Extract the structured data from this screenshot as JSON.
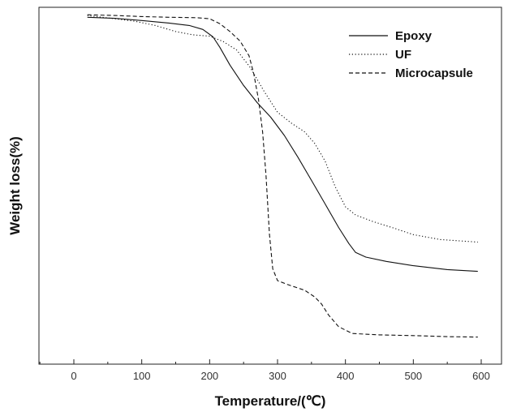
{
  "chart_data": {
    "type": "line",
    "xlabel": "Temperature/(℃)",
    "ylabel": "Weight loss(%)",
    "xlim": [
      -50,
      625
    ],
    "ylim": [
      0,
      100
    ],
    "x_ticks": [
      "0",
      "100",
      "200",
      "300",
      "400",
      "500",
      "600"
    ],
    "x_tick_values": [
      0,
      100,
      200,
      300,
      400,
      500,
      600
    ],
    "y_tick_labels_shown": false,
    "grid": false,
    "legend_position": "top-right",
    "series": [
      {
        "name": "Epoxy",
        "style": "solid",
        "points": [
          [
            20,
            97.2
          ],
          [
            60,
            96.9
          ],
          [
            100,
            96.3
          ],
          [
            140,
            95.6
          ],
          [
            170,
            94.9
          ],
          [
            190,
            93.8
          ],
          [
            205,
            91.7
          ],
          [
            215,
            88.8
          ],
          [
            230,
            83.8
          ],
          [
            250,
            78.1
          ],
          [
            270,
            73.3
          ],
          [
            290,
            69.2
          ],
          [
            310,
            64.1
          ],
          [
            330,
            58.0
          ],
          [
            350,
            51.5
          ],
          [
            370,
            44.9
          ],
          [
            390,
            38.3
          ],
          [
            405,
            33.8
          ],
          [
            415,
            31.3
          ],
          [
            430,
            30.0
          ],
          [
            460,
            28.8
          ],
          [
            500,
            27.6
          ],
          [
            550,
            26.5
          ],
          [
            595,
            26.0
          ]
        ]
      },
      {
        "name": "UF",
        "style": "dotted",
        "points": [
          [
            20,
            97.7
          ],
          [
            60,
            96.8
          ],
          [
            90,
            96.1
          ],
          [
            120,
            94.9
          ],
          [
            150,
            93.2
          ],
          [
            175,
            92.3
          ],
          [
            200,
            91.9
          ],
          [
            220,
            90.4
          ],
          [
            240,
            88.0
          ],
          [
            260,
            83.1
          ],
          [
            280,
            76.5
          ],
          [
            300,
            70.6
          ],
          [
            320,
            67.6
          ],
          [
            340,
            65.1
          ],
          [
            355,
            61.8
          ],
          [
            370,
            56.9
          ],
          [
            385,
            49.7
          ],
          [
            400,
            44.1
          ],
          [
            415,
            41.8
          ],
          [
            440,
            40.0
          ],
          [
            470,
            38.2
          ],
          [
            500,
            36.3
          ],
          [
            540,
            34.9
          ],
          [
            595,
            34.2
          ]
        ]
      },
      {
        "name": "Microcapsule",
        "style": "dashed",
        "points": [
          [
            20,
            97.9
          ],
          [
            60,
            97.7
          ],
          [
            100,
            97.4
          ],
          [
            140,
            97.2
          ],
          [
            180,
            97.1
          ],
          [
            200,
            96.8
          ],
          [
            215,
            95.4
          ],
          [
            230,
            93.2
          ],
          [
            245,
            90.5
          ],
          [
            258,
            86.4
          ],
          [
            265,
            81.4
          ],
          [
            272,
            74.1
          ],
          [
            278,
            65.1
          ],
          [
            283,
            52.9
          ],
          [
            288,
            36.5
          ],
          [
            293,
            26.7
          ],
          [
            300,
            23.4
          ],
          [
            315,
            22.3
          ],
          [
            340,
            20.7
          ],
          [
            355,
            18.8
          ],
          [
            365,
            16.8
          ],
          [
            375,
            13.8
          ],
          [
            390,
            10.5
          ],
          [
            410,
            8.6
          ],
          [
            450,
            8.2
          ],
          [
            500,
            8.0
          ],
          [
            550,
            7.7
          ],
          [
            595,
            7.6
          ]
        ]
      }
    ]
  }
}
